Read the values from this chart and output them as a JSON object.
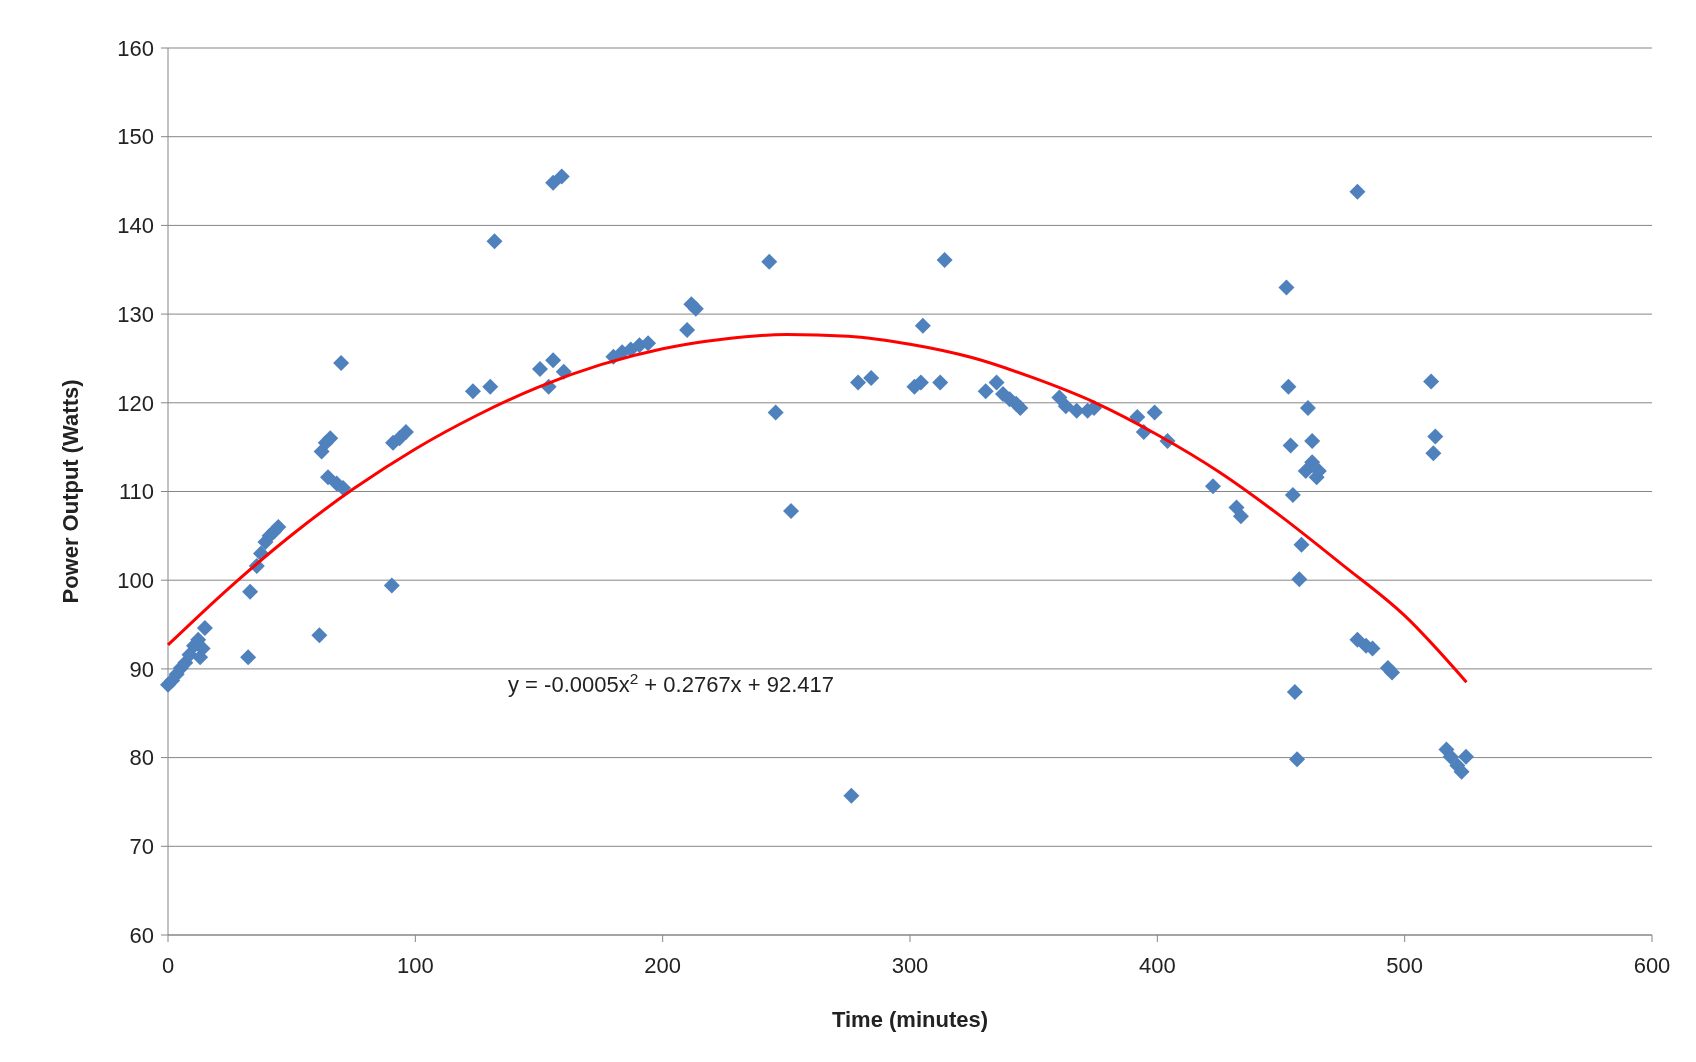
{
  "chart_data": {
    "type": "scatter",
    "xlabel": "Time (minutes)",
    "ylabel": "Power Output (Watts)",
    "xlim": [
      0,
      600
    ],
    "xticks": [
      0,
      100,
      200,
      300,
      400,
      500,
      600
    ],
    "ylim": [
      60,
      160
    ],
    "yticks": [
      60,
      70,
      80,
      90,
      100,
      110,
      120,
      130,
      140,
      150,
      160
    ],
    "grid": "y",
    "annotations": [
      "y = -0.0005x$^{2}$ + 0.2767x + 92.417"
    ],
    "series": [
      {
        "marker": "diamond",
        "color": "#4f81bd",
        "x": [
          0,
          1.7,
          3.5,
          5.2,
          7,
          8.7,
          10.5,
          12.2,
          13,
          14,
          14.9,
          32.4,
          33.2,
          35.9,
          37.6,
          39.4,
          41.1,
          42.9,
          44.6,
          61.2,
          62.1,
          63.8,
          65.6,
          64.7,
          68.2,
          70,
          70.8,
          90.5,
          91,
          93.6,
          96.2,
          123.3,
          130.3,
          132,
          150.4,
          153.9,
          155.7,
          155.7,
          159.2,
          160,
          180.1,
          183.6,
          187.1,
          190.6,
          194.1,
          209.9,
          211.6,
          213.4,
          243.1,
          245.7,
          251.9,
          276.3,
          279,
          284.3,
          301.8,
          304.4,
          305.2,
          312.2,
          314,
          330.6,
          335,
          337.6,
          340.3,
          342.9,
          344.6,
          360.4,
          363,
          367.4,
          371.8,
          374.4,
          391.9,
          394.5,
          398.9,
          404.1,
          422.5,
          432,
          433.8,
          452.2,
          453,
          453.9,
          454.8,
          455.6,
          456.5,
          457.4,
          458.3,
          460,
          460.9,
          462.6,
          462.6,
          464.4,
          465.3,
          480.9,
          480.9,
          484.4,
          487,
          493.2,
          494.9,
          510.7,
          512.4,
          511.6,
          516.9,
          518.6,
          521.3,
          523,
          524.8
        ],
        "values": [
          88.2,
          88.7,
          89.4,
          90.1,
          90.7,
          91.6,
          92.6,
          93.3,
          91.3,
          92.3,
          94.6,
          91.3,
          98.7,
          101.6,
          103,
          104.3,
          105,
          105.5,
          106,
          93.8,
          114.5,
          115.5,
          116,
          111.6,
          110.9,
          124.5,
          110.4,
          99.4,
          115.5,
          116,
          116.7,
          121.3,
          121.8,
          138.2,
          123.8,
          121.8,
          124.8,
          144.8,
          145.5,
          123.5,
          125.2,
          125.7,
          126,
          126.5,
          126.7,
          128.2,
          131.1,
          130.6,
          135.9,
          118.9,
          107.8,
          75.7,
          122.3,
          122.8,
          121.8,
          122.3,
          128.7,
          122.3,
          136.1,
          121.3,
          122.3,
          121,
          120.4,
          119.9,
          119.4,
          120.6,
          119.6,
          119.1,
          119.1,
          119.4,
          118.4,
          116.7,
          118.9,
          115.7,
          110.6,
          108.2,
          107.2,
          133,
          121.8,
          115.2,
          109.6,
          87.4,
          79.8,
          100.1,
          104,
          112.3,
          119.4,
          115.7,
          113.3,
          111.6,
          112.3,
          143.8,
          93.3,
          92.6,
          92.3,
          90.1,
          89.6,
          122.4,
          116.2,
          114.3,
          80.9,
          80.1,
          79.1,
          78.4,
          80.1
        ]
      },
      {
        "type": "line",
        "marker": "none",
        "color": "#ff0000",
        "x": [
          0,
          25,
          50,
          75,
          100,
          125,
          150,
          175,
          200,
          225,
          250,
          275,
          300,
          325,
          350,
          375,
          400,
          425,
          450,
          475,
          500,
          525
        ],
        "values": [
          92.7,
          99.2,
          105.1,
          110.3,
          114.8,
          118.6,
          121.8,
          124.3,
          126.1,
          127.2,
          127.7,
          127.5,
          126.6,
          125.1,
          122.8,
          120,
          116.4,
          112.2,
          107.2,
          101.7,
          96,
          88.5
        ]
      }
    ]
  }
}
